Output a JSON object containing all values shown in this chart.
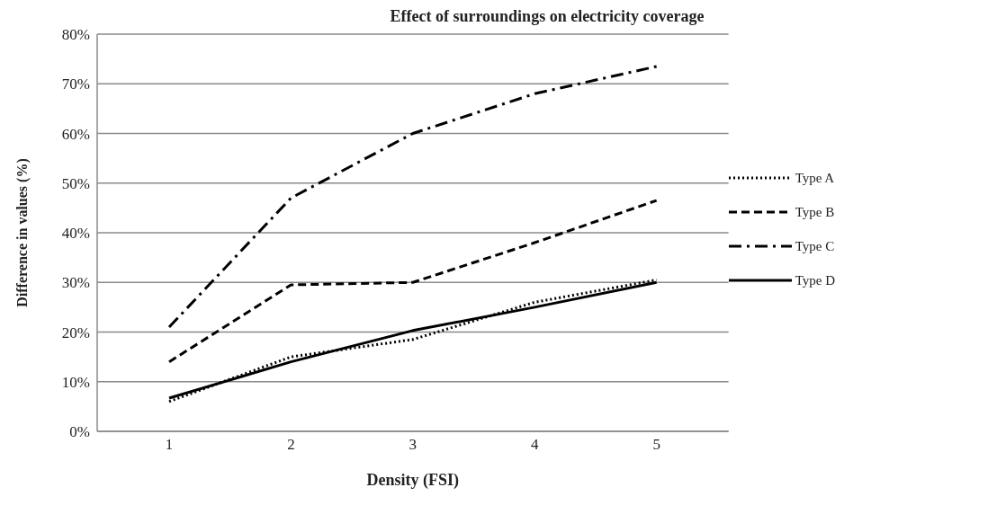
{
  "chart_data": {
    "type": "line",
    "title": "Effect of surroundings on electricity coverage",
    "xlabel": "Density (FSI)",
    "ylabel": "Difference in values (%)",
    "categories": [
      "1",
      "2",
      "3",
      "4",
      "5"
    ],
    "series": [
      {
        "name": "Type A",
        "color": "#000000",
        "line_style": "dotted",
        "values": [
          6,
          15,
          18.5,
          26,
          30.5
        ]
      },
      {
        "name": "Type B",
        "color": "#000000",
        "line_style": "dashed",
        "values": [
          14,
          29.5,
          30,
          38,
          46.5
        ]
      },
      {
        "name": "Type C",
        "color": "#000000",
        "line_style": "dashdot",
        "values": [
          21,
          47,
          60,
          68,
          73.5
        ]
      },
      {
        "name": "Type D",
        "color": "#000000",
        "line_style": "solid",
        "values": [
          6.7,
          14,
          20.3,
          25,
          30
        ]
      }
    ],
    "ylim": [
      0,
      80
    ],
    "yticks": [
      {
        "value": 0,
        "label": "0%"
      },
      {
        "value": 10,
        "label": "10%"
      },
      {
        "value": 20,
        "label": "20%"
      },
      {
        "value": 30,
        "label": "30%"
      },
      {
        "value": 40,
        "label": "40%"
      },
      {
        "value": 50,
        "label": "50%"
      },
      {
        "value": 60,
        "label": "60%"
      },
      {
        "value": 70,
        "label": "70%"
      },
      {
        "value": 80,
        "label": "80%"
      }
    ],
    "grid": "y",
    "legend": "right",
    "marker": "none"
  }
}
